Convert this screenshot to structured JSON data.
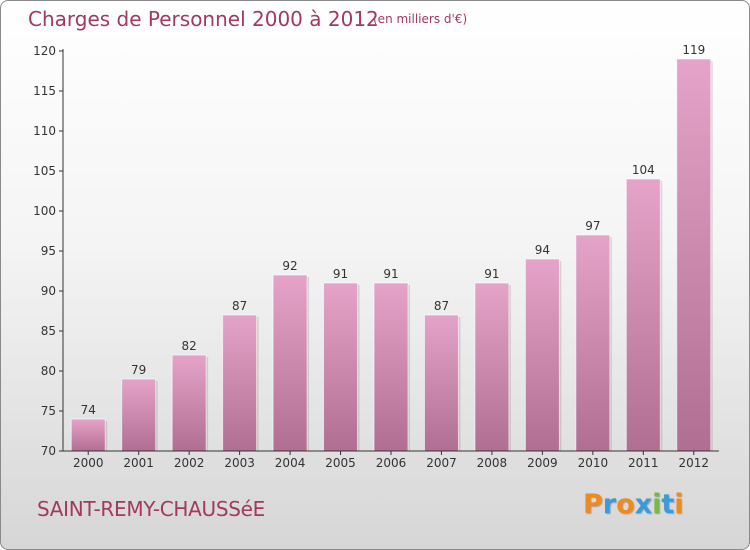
{
  "title": "Charges de Personnel 2000 à 2012",
  "subtitle": "(en milliers d'€)",
  "commune": "SAINT-REMY-CHAUSSéE",
  "logo": {
    "letters": [
      "P",
      "r",
      "o",
      "x",
      "i",
      "t",
      "i"
    ],
    "colors": [
      "#f08a1e",
      "#3b9ad9",
      "#f08a1e",
      "#3b9ad9",
      "#7ab648",
      "#3b9ad9",
      "#f08a1e"
    ]
  },
  "colors": {
    "bar_top": "#e6a3c9",
    "bar_bottom": "#b06f92",
    "text": "#a13a5b"
  },
  "chart_data": {
    "type": "bar",
    "title": "Charges de Personnel 2000 à 2012",
    "xlabel": "",
    "ylabel": "",
    "categories": [
      "2000",
      "2001",
      "2002",
      "2003",
      "2004",
      "2005",
      "2006",
      "2007",
      "2008",
      "2009",
      "2010",
      "2011",
      "2012"
    ],
    "values": [
      74,
      79,
      82,
      87,
      92,
      91,
      91,
      87,
      91,
      94,
      97,
      104,
      119
    ],
    "ylim": [
      70,
      120
    ],
    "yticks": [
      70,
      75,
      80,
      85,
      90,
      95,
      100,
      105,
      110,
      115,
      120
    ],
    "grid": false,
    "legend": "none"
  }
}
